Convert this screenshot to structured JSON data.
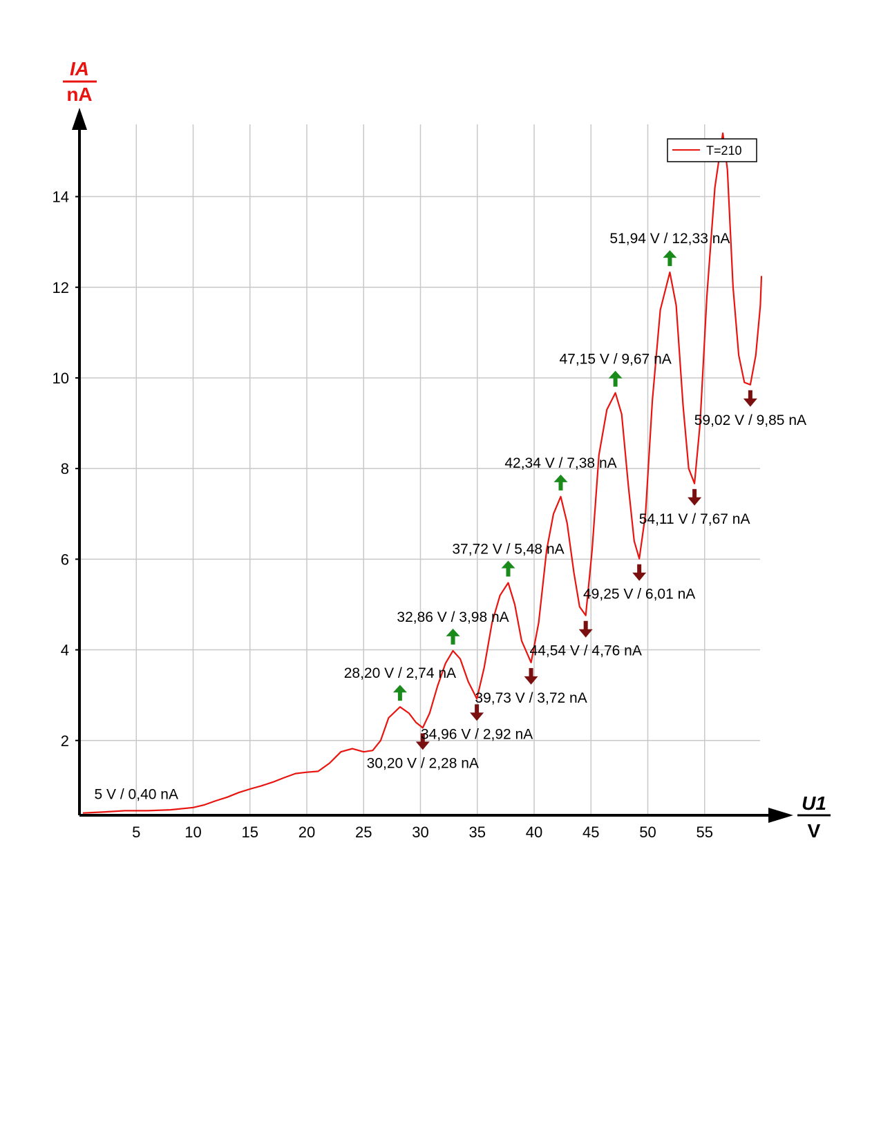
{
  "chart_data": {
    "type": "line",
    "title": "",
    "xlabel": "U1",
    "xunit": "V",
    "ylabel": "IA",
    "yunit": "nA",
    "xlim": [
      0,
      60
    ],
    "ylim": [
      0.35,
      15.5
    ],
    "xticks": [
      5,
      10,
      15,
      20,
      25,
      30,
      35,
      40,
      45,
      50,
      55
    ],
    "yticks": [
      2,
      4,
      6,
      8,
      10,
      12,
      14
    ],
    "grid": true,
    "legend_position": "top-right",
    "colors": {
      "series": "#e8140f",
      "max_arrow": "#1a8a1a",
      "min_arrow": "#7a0f0f",
      "grid": "#c8c8c8"
    },
    "series": [
      {
        "name": "T=210",
        "x": [
          0.3,
          2,
          4,
          6,
          8,
          10,
          11,
          12,
          13,
          14,
          15,
          16,
          17,
          18,
          19,
          20,
          21,
          22,
          23,
          24,
          25,
          25.8,
          26.5,
          27.2,
          28.2,
          29,
          29.6,
          30.2,
          30.8,
          31.5,
          32.2,
          32.86,
          33.5,
          34.2,
          34.96,
          35.6,
          36.3,
          37.0,
          37.72,
          38.3,
          38.9,
          39.73,
          40.4,
          41.1,
          41.7,
          42.34,
          42.9,
          43.5,
          44.0,
          44.54,
          45.1,
          45.7,
          46.4,
          47.15,
          47.7,
          48.3,
          48.8,
          49.25,
          49.8,
          50.4,
          51.1,
          51.94,
          52.5,
          53.1,
          53.6,
          54.11,
          54.6,
          55.2,
          55.9,
          56.6,
          57.0,
          57.5,
          58.0,
          58.5,
          59.02,
          59.5,
          59.9,
          60.0
        ],
        "y": [
          0.4,
          0.42,
          0.45,
          0.45,
          0.47,
          0.52,
          0.58,
          0.67,
          0.75,
          0.85,
          0.93,
          1.0,
          1.08,
          1.18,
          1.27,
          1.3,
          1.32,
          1.5,
          1.75,
          1.82,
          1.75,
          1.78,
          2.0,
          2.5,
          2.74,
          2.6,
          2.4,
          2.28,
          2.6,
          3.2,
          3.7,
          3.98,
          3.8,
          3.3,
          2.92,
          3.6,
          4.6,
          5.2,
          5.48,
          5.0,
          4.2,
          3.72,
          4.6,
          6.2,
          7.0,
          7.38,
          6.8,
          5.7,
          4.95,
          4.76,
          6.2,
          8.3,
          9.3,
          9.67,
          9.2,
          7.6,
          6.4,
          6.01,
          7.0,
          9.5,
          11.5,
          12.33,
          11.6,
          9.4,
          8.0,
          7.67,
          9.0,
          11.8,
          14.2,
          15.4,
          14.6,
          12.0,
          10.5,
          9.9,
          9.85,
          10.5,
          11.6,
          12.25
        ]
      }
    ],
    "annotations": [
      {
        "kind": "start",
        "x": 5,
        "y": 0.4,
        "text": "5 V / 0,40 nA"
      },
      {
        "kind": "max",
        "x": 28.2,
        "y": 2.74,
        "text": "28,20 V / 2,74 nA"
      },
      {
        "kind": "min",
        "x": 30.2,
        "y": 2.28,
        "text": "30,20 V / 2,28 nA"
      },
      {
        "kind": "max",
        "x": 32.86,
        "y": 3.98,
        "text": "32,86 V / 3,98 nA"
      },
      {
        "kind": "min",
        "x": 34.96,
        "y": 2.92,
        "text": "34,96 V / 2,92 nA"
      },
      {
        "kind": "max",
        "x": 37.72,
        "y": 5.48,
        "text": "37,72 V / 5,48 nA"
      },
      {
        "kind": "min",
        "x": 39.73,
        "y": 3.72,
        "text": "39,73 V / 3,72 nA"
      },
      {
        "kind": "max",
        "x": 42.34,
        "y": 7.38,
        "text": "42,34 V / 7,38 nA"
      },
      {
        "kind": "min",
        "x": 44.54,
        "y": 4.76,
        "text": "44,54 V / 4,76 nA"
      },
      {
        "kind": "max",
        "x": 47.15,
        "y": 9.67,
        "text": "47,15 V / 9,67 nA"
      },
      {
        "kind": "min",
        "x": 49.25,
        "y": 6.01,
        "text": "49,25 V / 6,01 nA"
      },
      {
        "kind": "max",
        "x": 51.94,
        "y": 12.33,
        "text": "51,94 V / 12,33 nA"
      },
      {
        "kind": "min",
        "x": 54.11,
        "y": 7.67,
        "text": "54,11 V / 7,67 nA"
      },
      {
        "kind": "min",
        "x": 59.02,
        "y": 9.85,
        "text": "59,02 V / 9,85 nA"
      }
    ]
  }
}
